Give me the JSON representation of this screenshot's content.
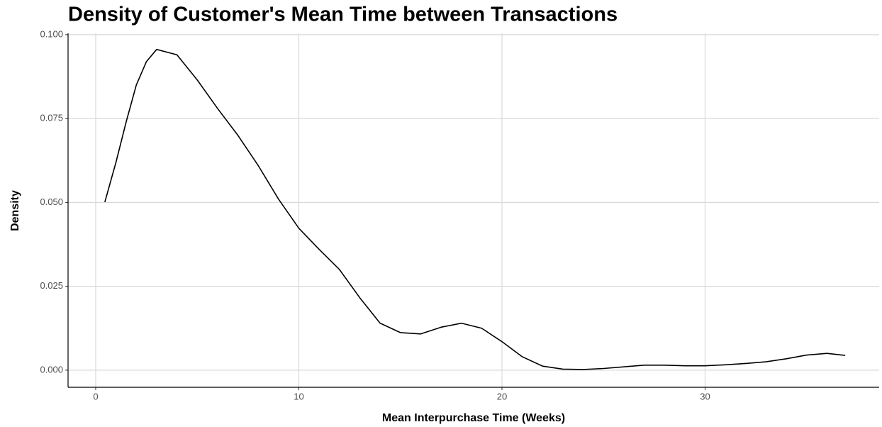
{
  "chart_data": {
    "type": "line",
    "title": "Density of Customer's Mean Time between Transactions",
    "x_label": "Mean Interpurchase Time (Weeks)",
    "y_label": "Density",
    "x": [
      0.45,
      1,
      1.5,
      2,
      2.5,
      3,
      4,
      5,
      6,
      7,
      8,
      9,
      10,
      11,
      12,
      13,
      14,
      15,
      16,
      17,
      18,
      19,
      20,
      21,
      22,
      23,
      24,
      25,
      26,
      27,
      28,
      29,
      30,
      31,
      32,
      33,
      34,
      35,
      36,
      36.9
    ],
    "series": [
      {
        "name": "density",
        "color": "#000000",
        "values": [
          0.0501,
          0.062,
          0.074,
          0.085,
          0.092,
          0.0956,
          0.094,
          0.0865,
          0.078,
          0.07,
          0.061,
          0.051,
          0.0423,
          0.036,
          0.03,
          0.0216,
          0.014,
          0.0112,
          0.0108,
          0.0128,
          0.014,
          0.0125,
          0.0085,
          0.004,
          0.0012,
          0.0003,
          0.0002,
          0.0005,
          0.001,
          0.0015,
          0.0015,
          0.0013,
          0.0013,
          0.0016,
          0.002,
          0.0025,
          0.0034,
          0.0045,
          0.005,
          0.0044
        ]
      }
    ],
    "xlim": [
      -1.36,
      38.57
    ],
    "ylim": [
      -0.0051,
      0.1004
    ],
    "xticks": [
      0,
      10,
      20,
      30
    ],
    "yticks": [
      {
        "value": 0,
        "label": "0.000"
      },
      {
        "value": 0.025,
        "label": "0.025"
      },
      {
        "value": 0.05,
        "label": "0.050"
      },
      {
        "value": 0.075,
        "label": "0.075"
      },
      {
        "value": 0.1,
        "label": "0.100"
      }
    ],
    "grid": true
  }
}
